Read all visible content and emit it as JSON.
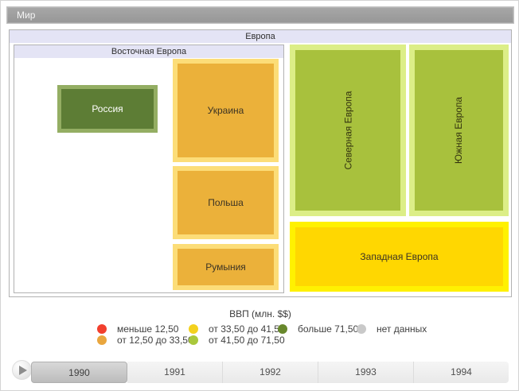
{
  "window": {
    "title": "Мир"
  },
  "treemap": {
    "root_label": "Европа",
    "group_label": "Восточная Европа",
    "tiles": {
      "russia": {
        "label": "Россия",
        "fill_color": "#5d7d35",
        "border_color": "#94ae63"
      },
      "ukraine": {
        "label": "Украина",
        "fill_color": "#ebb13a",
        "border_color": "#fcdd78"
      },
      "poland": {
        "label": "Польша",
        "fill_color": "#ebb13a",
        "border_color": "#fcdd78"
      },
      "romania": {
        "label": "Румыния",
        "fill_color": "#ebb13a",
        "border_color": "#fcdd78"
      },
      "northern": {
        "label": "Северная Европа",
        "fill_color": "#a8c13d",
        "border_color": "#dcee87"
      },
      "southern": {
        "label": "Южная Европа",
        "fill_color": "#a8c13d",
        "border_color": "#dcee87"
      },
      "western": {
        "label": "Западная Европа",
        "fill_color": "#ffd701",
        "border_color": "#fff101"
      }
    }
  },
  "legend": {
    "title": "ВВП (млн. $$)",
    "items": [
      {
        "label": "меньше 12,50",
        "color": "#f23f2d"
      },
      {
        "label": "от 33,50 до 41,50",
        "color": "#f3d11e"
      },
      {
        "label": "больше 71,50",
        "color": "#68882c"
      },
      {
        "label": "нет данных",
        "color": "#c9c9c9"
      },
      {
        "label": "от 12,50 до 33,50",
        "color": "#e9a63e"
      },
      {
        "label": "от 41,50 до 71,50",
        "color": "#a9c83c"
      }
    ]
  },
  "timeline": {
    "years": [
      "1990",
      "1991",
      "1992",
      "1993",
      "1994"
    ],
    "selected_year": "1990"
  },
  "chart_data": {
    "type": "treemap",
    "title": "Европа",
    "root": "Мир",
    "legend_title": "ВВП (млн. $$)",
    "legend_position": "bottom",
    "color_bins": [
      {
        "label": "меньше 12,50",
        "color": "#f23f2d"
      },
      {
        "label": "от 12,50 до 33,50",
        "color": "#e9a63e"
      },
      {
        "label": "от 33,50 до 41,50",
        "color": "#f3d11e"
      },
      {
        "label": "от 41,50 до 71,50",
        "color": "#a9c83c"
      },
      {
        "label": "больше 71,50",
        "color": "#68882c"
      },
      {
        "label": "нет данных",
        "color": "#c9c9c9"
      }
    ],
    "nodes": [
      {
        "path": [
          "Мир",
          "Европа",
          "Восточная Европа",
          "Россия"
        ],
        "bin": "больше 71,50"
      },
      {
        "path": [
          "Мир",
          "Европа",
          "Восточная Европа",
          "Украина"
        ],
        "bin": "от 12,50 до 33,50"
      },
      {
        "path": [
          "Мир",
          "Европа",
          "Восточная Европа",
          "Польша"
        ],
        "bin": "от 12,50 до 33,50"
      },
      {
        "path": [
          "Мир",
          "Европа",
          "Восточная Европа",
          "Румыния"
        ],
        "bin": "от 12,50 до 33,50"
      },
      {
        "path": [
          "Мир",
          "Европа",
          "Северная Европа"
        ],
        "bin": "от 41,50 до 71,50"
      },
      {
        "path": [
          "Мир",
          "Европа",
          "Южная Европа"
        ],
        "bin": "от 41,50 до 71,50"
      },
      {
        "path": [
          "Мир",
          "Европа",
          "Западная Европа"
        ],
        "bin": "от 33,50 до 41,50"
      }
    ],
    "time_axis": {
      "years": [
        "1990",
        "1991",
        "1992",
        "1993",
        "1994"
      ],
      "selected": "1990"
    }
  }
}
